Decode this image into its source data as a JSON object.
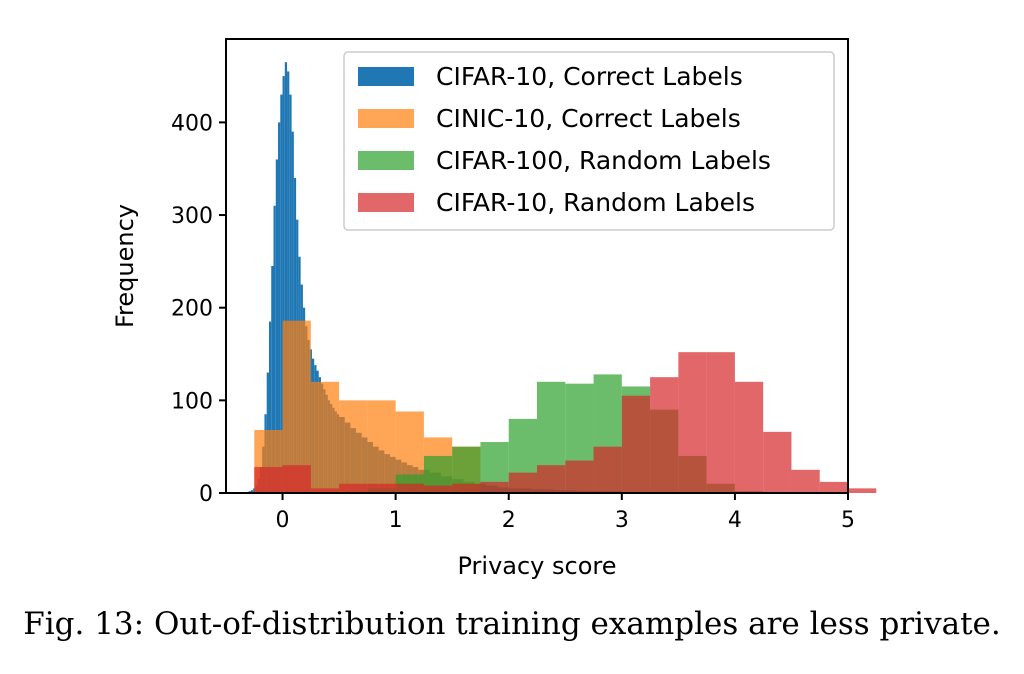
{
  "caption": "Fig. 13: Out-of-distribution training examples are less private.",
  "chart_data": {
    "type": "histogram",
    "xlabel": "Privacy score",
    "ylabel": "Frequency",
    "xlim": [
      -0.5,
      5.0
    ],
    "ylim": [
      0,
      490
    ],
    "xticks": [
      0,
      1,
      2,
      3,
      4,
      5
    ],
    "yticks": [
      0,
      100,
      200,
      300,
      400
    ],
    "grid": false,
    "legend_position": "top-right",
    "series": [
      {
        "name": "CIFAR-10, Correct Labels",
        "color": "#1f77b4",
        "alpha": 1.0,
        "points": [
          [
            -0.3,
            2
          ],
          [
            -0.28,
            3
          ],
          [
            -0.26,
            5
          ],
          [
            -0.24,
            8
          ],
          [
            -0.22,
            15
          ],
          [
            -0.2,
            28
          ],
          [
            -0.18,
            50
          ],
          [
            -0.16,
            85
          ],
          [
            -0.14,
            130
          ],
          [
            -0.12,
            185
          ],
          [
            -0.1,
            245
          ],
          [
            -0.08,
            310
          ],
          [
            -0.06,
            360
          ],
          [
            -0.04,
            400
          ],
          [
            -0.02,
            430
          ],
          [
            0.0,
            450
          ],
          [
            0.02,
            465
          ],
          [
            0.04,
            455
          ],
          [
            0.06,
            430
          ],
          [
            0.08,
            390
          ],
          [
            0.1,
            340
          ],
          [
            0.12,
            295
          ],
          [
            0.14,
            255
          ],
          [
            0.16,
            225
          ],
          [
            0.18,
            200
          ],
          [
            0.2,
            180
          ],
          [
            0.22,
            165
          ],
          [
            0.24,
            155
          ],
          [
            0.26,
            145
          ],
          [
            0.28,
            138
          ],
          [
            0.3,
            132
          ],
          [
            0.32,
            125
          ],
          [
            0.34,
            118
          ],
          [
            0.36,
            112
          ],
          [
            0.38,
            106
          ],
          [
            0.4,
            100
          ],
          [
            0.42,
            96
          ],
          [
            0.44,
            92
          ],
          [
            0.46,
            88
          ],
          [
            0.48,
            85
          ],
          [
            0.5,
            82
          ],
          [
            0.55,
            76
          ],
          [
            0.6,
            70
          ],
          [
            0.65,
            65
          ],
          [
            0.7,
            60
          ],
          [
            0.75,
            55
          ],
          [
            0.8,
            50
          ],
          [
            0.85,
            46
          ],
          [
            0.9,
            42
          ],
          [
            0.95,
            39
          ],
          [
            1.0,
            36
          ],
          [
            1.05,
            33
          ],
          [
            1.1,
            30
          ],
          [
            1.15,
            28
          ],
          [
            1.2,
            25
          ],
          [
            1.3,
            22
          ],
          [
            1.4,
            18
          ],
          [
            1.5,
            15
          ],
          [
            1.6,
            12
          ],
          [
            1.7,
            10
          ],
          [
            1.8,
            8
          ],
          [
            1.9,
            6
          ],
          [
            2.0,
            5
          ],
          [
            2.2,
            4
          ],
          [
            2.4,
            3
          ],
          [
            2.6,
            2
          ],
          [
            2.8,
            2
          ],
          [
            3.0,
            1
          ]
        ]
      },
      {
        "name": "CINIC-10, Correct Labels",
        "color": "#ff7f0e",
        "alpha": 0.7,
        "bin_start": -0.25,
        "bin_width": 0.25,
        "values": [
          68,
          186,
          120,
          100,
          100,
          88,
          60,
          50,
          0,
          0,
          0,
          0,
          0,
          0,
          0,
          0,
          0,
          0,
          0,
          0
        ]
      },
      {
        "name": "CIFAR-100, Random Labels",
        "color": "#2ca02c",
        "alpha": 0.7,
        "bin_start": 0.75,
        "bin_width": 0.25,
        "values": [
          5,
          20,
          40,
          50,
          55,
          80,
          120,
          118,
          128,
          115,
          90,
          40,
          10,
          2
        ]
      },
      {
        "name": "CIFAR-10, Random Labels",
        "color": "#d62728",
        "alpha": 0.7,
        "bin_start": -0.25,
        "bin_width": 0.25,
        "values": [
          28,
          30,
          5,
          10,
          10,
          10,
          8,
          10,
          12,
          22,
          30,
          35,
          50,
          105,
          125,
          152,
          152,
          120,
          66,
          25,
          12,
          5
        ]
      }
    ]
  }
}
